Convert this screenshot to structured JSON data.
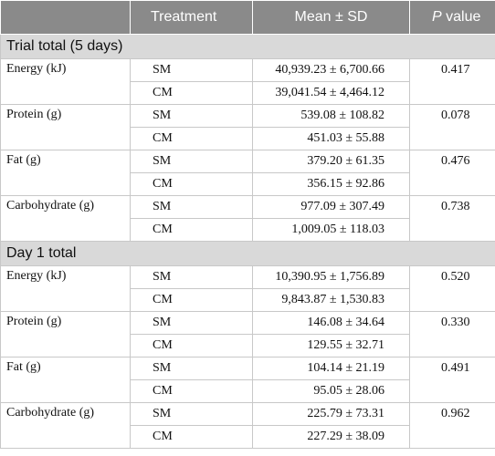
{
  "header": {
    "col1": "",
    "col2": "Treatment",
    "col3": "Mean ± SD",
    "col4_italic": "P",
    "col4_rest": " value"
  },
  "sections": [
    {
      "title": "Trial total (5 days)",
      "variables": [
        {
          "name": "Energy (kJ)",
          "p": "0.417",
          "rows": [
            {
              "t": "SM",
              "m": "40,939.23 ± 6,700.66"
            },
            {
              "t": "CM",
              "m": "39,041.54 ± 4,464.12"
            }
          ]
        },
        {
          "name": "Protein (g)",
          "p": "0.078",
          "rows": [
            {
              "t": "SM",
              "m": "539.08 ± 108.82"
            },
            {
              "t": "CM",
              "m": "451.03 ± 55.88"
            }
          ]
        },
        {
          "name": "Fat (g)",
          "p": "0.476",
          "rows": [
            {
              "t": "SM",
              "m": "379.20 ± 61.35"
            },
            {
              "t": "CM",
              "m": "356.15 ± 92.86"
            }
          ]
        },
        {
          "name": "Carbohydrate (g)",
          "p": "0.738",
          "rows": [
            {
              "t": "SM",
              "m": "977.09 ± 307.49"
            },
            {
              "t": "CM",
              "m": "1,009.05 ± 118.03"
            }
          ]
        }
      ]
    },
    {
      "title": "Day 1 total",
      "variables": [
        {
          "name": "Energy (kJ)",
          "p": "0.520",
          "rows": [
            {
              "t": "SM",
              "m": "10,390.95 ± 1,756.89"
            },
            {
              "t": "CM",
              "m": "9,843.87 ± 1,530.83"
            }
          ]
        },
        {
          "name": "Protein (g)",
          "p": "0.330",
          "rows": [
            {
              "t": "SM",
              "m": "146.08 ± 34.64"
            },
            {
              "t": "CM",
              "m": "129.55 ± 32.71"
            }
          ]
        },
        {
          "name": "Fat (g)",
          "p": "0.491",
          "rows": [
            {
              "t": "SM",
              "m": "104.14 ± 21.19"
            },
            {
              "t": "CM",
              "m": "95.05 ± 28.06"
            }
          ]
        },
        {
          "name": "Carbohydrate (g)",
          "p": "0.962",
          "rows": [
            {
              "t": "SM",
              "m": "225.79 ± 73.31"
            },
            {
              "t": "CM",
              "m": "227.29 ± 38.09"
            }
          ]
        }
      ]
    }
  ]
}
